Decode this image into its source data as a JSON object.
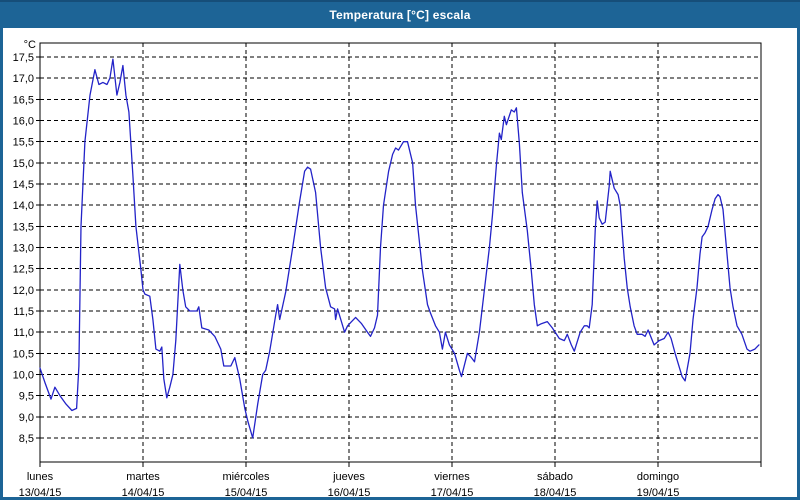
{
  "window": {
    "title": "Temperatura [°C] escala"
  },
  "colors": {
    "title_bar": "#1d6496",
    "title_bar_top_edge": "#164e79",
    "window_border": "#1d6496",
    "plot_background": "#ffffff",
    "grid": "#000000",
    "line": "#2323c8",
    "text": "#000000",
    "title_text": "#ffffff"
  },
  "chart_data": {
    "type": "line",
    "title": "Temperatura [°C] escala",
    "ylabel": "°C",
    "ylim": [
      8.5,
      17.5
    ],
    "ytick_step": 0.5,
    "ytick_labels": [
      "17,5",
      "17,0",
      "16,5",
      "16,0",
      "15,5",
      "15,0",
      "14,5",
      "14,0",
      "13,5",
      "13,0",
      "12,5",
      "12,0",
      "11,5",
      "11,0",
      "10,5",
      "10,0",
      "9,5",
      "9,0",
      "8,5"
    ],
    "grid": "dashed",
    "legend_position": "none",
    "x_days": [
      {
        "name": "lunes",
        "date": "13/04/15"
      },
      {
        "name": "martes",
        "date": "14/04/15"
      },
      {
        "name": "miércoles",
        "date": "15/04/15"
      },
      {
        "name": "jueves",
        "date": "16/04/15"
      },
      {
        "name": "viernes",
        "date": "17/04/15"
      },
      {
        "name": "sábado",
        "date": "18/04/15"
      },
      {
        "name": "domingo",
        "date": "19/04/15"
      }
    ],
    "series": [
      {
        "name": "Temperatura",
        "color": "#2323c8",
        "points": [
          [
            0.0,
            10.15
          ],
          [
            0.05,
            9.8
          ],
          [
            0.107,
            9.42
          ],
          [
            0.145,
            9.7
          ],
          [
            0.194,
            9.5
          ],
          [
            0.252,
            9.3
          ],
          [
            0.31,
            9.15
          ],
          [
            0.355,
            9.2
          ],
          [
            0.378,
            10.2
          ],
          [
            0.398,
            13.5
          ],
          [
            0.436,
            15.5
          ],
          [
            0.485,
            16.6
          ],
          [
            0.533,
            17.2
          ],
          [
            0.572,
            16.85
          ],
          [
            0.611,
            16.9
          ],
          [
            0.65,
            16.85
          ],
          [
            0.679,
            17.0
          ],
          [
            0.708,
            17.45
          ],
          [
            0.747,
            16.6
          ],
          [
            0.776,
            16.9
          ],
          [
            0.805,
            17.3
          ],
          [
            0.834,
            16.6
          ],
          [
            0.863,
            16.2
          ],
          [
            0.902,
            14.7
          ],
          [
            0.931,
            13.5
          ],
          [
            0.979,
            12.5
          ],
          [
            1.0,
            12.0
          ],
          [
            1.018,
            11.9
          ],
          [
            1.066,
            11.85
          ],
          [
            1.096,
            11.3
          ],
          [
            1.125,
            10.6
          ],
          [
            1.163,
            10.55
          ],
          [
            1.183,
            10.65
          ],
          [
            1.202,
            9.9
          ],
          [
            1.231,
            9.45
          ],
          [
            1.26,
            9.7
          ],
          [
            1.29,
            10.0
          ],
          [
            1.318,
            10.8
          ],
          [
            1.357,
            12.6
          ],
          [
            1.386,
            12.0
          ],
          [
            1.415,
            11.6
          ],
          [
            1.454,
            11.5
          ],
          [
            1.522,
            11.5
          ],
          [
            1.542,
            11.6
          ],
          [
            1.571,
            11.1
          ],
          [
            1.639,
            11.05
          ],
          [
            1.697,
            10.9
          ],
          [
            1.755,
            10.6
          ],
          [
            1.784,
            10.2
          ],
          [
            1.852,
            10.2
          ],
          [
            1.891,
            10.4
          ],
          [
            1.939,
            9.9
          ],
          [
            1.988,
            9.2
          ],
          [
            2.017,
            8.9
          ],
          [
            2.065,
            8.5
          ],
          [
            2.114,
            9.3
          ],
          [
            2.162,
            10.0
          ],
          [
            2.191,
            10.1
          ],
          [
            2.23,
            10.55
          ],
          [
            2.288,
            11.4
          ],
          [
            2.307,
            11.65
          ],
          [
            2.327,
            11.3
          ],
          [
            2.385,
            11.95
          ],
          [
            2.453,
            13.0
          ],
          [
            2.521,
            14.1
          ],
          [
            2.569,
            14.8
          ],
          [
            2.598,
            14.9
          ],
          [
            2.627,
            14.85
          ],
          [
            2.676,
            14.3
          ],
          [
            2.724,
            13.0
          ],
          [
            2.773,
            12.05
          ],
          [
            2.821,
            11.6
          ],
          [
            2.86,
            11.55
          ],
          [
            2.87,
            11.3
          ],
          [
            2.889,
            11.55
          ],
          [
            2.957,
            11.0
          ],
          [
            2.986,
            11.15
          ],
          [
            3.025,
            11.25
          ],
          [
            3.064,
            11.35
          ],
          [
            3.122,
            11.2
          ],
          [
            3.18,
            11.0
          ],
          [
            3.209,
            10.9
          ],
          [
            3.248,
            11.1
          ],
          [
            3.277,
            11.4
          ],
          [
            3.306,
            13.0
          ],
          [
            3.335,
            14.0
          ],
          [
            3.384,
            14.8
          ],
          [
            3.423,
            15.2
          ],
          [
            3.452,
            15.35
          ],
          [
            3.481,
            15.3
          ],
          [
            3.529,
            15.5
          ],
          [
            3.568,
            15.5
          ],
          [
            3.617,
            15.0
          ],
          [
            3.646,
            14.0
          ],
          [
            3.714,
            12.45
          ],
          [
            3.762,
            11.65
          ],
          [
            3.791,
            11.45
          ],
          [
            3.84,
            11.15
          ],
          [
            3.878,
            11.0
          ],
          [
            3.907,
            10.6
          ],
          [
            3.936,
            11.0
          ],
          [
            3.975,
            10.7
          ],
          [
            4.024,
            10.5
          ],
          [
            4.072,
            10.1
          ],
          [
            4.092,
            9.95
          ],
          [
            4.15,
            10.5
          ],
          [
            4.188,
            10.4
          ],
          [
            4.218,
            10.3
          ],
          [
            4.266,
            11.0
          ],
          [
            4.315,
            12.0
          ],
          [
            4.363,
            13.0
          ],
          [
            4.392,
            13.75
          ],
          [
            4.431,
            14.95
          ],
          [
            4.46,
            15.7
          ],
          [
            4.479,
            15.55
          ],
          [
            4.508,
            16.1
          ],
          [
            4.528,
            15.9
          ],
          [
            4.576,
            16.25
          ],
          [
            4.605,
            16.2
          ],
          [
            4.625,
            16.3
          ],
          [
            4.654,
            15.45
          ],
          [
            4.683,
            14.3
          ],
          [
            4.731,
            13.4
          ],
          [
            4.77,
            12.45
          ],
          [
            4.799,
            11.65
          ],
          [
            4.828,
            11.15
          ],
          [
            4.867,
            11.2
          ],
          [
            4.925,
            11.25
          ],
          [
            4.974,
            11.1
          ],
          [
            5.042,
            10.85
          ],
          [
            5.09,
            10.8
          ],
          [
            5.119,
            10.95
          ],
          [
            5.158,
            10.7
          ],
          [
            5.187,
            10.55
          ],
          [
            5.245,
            11.0
          ],
          [
            5.284,
            11.15
          ],
          [
            5.313,
            11.15
          ],
          [
            5.332,
            11.1
          ],
          [
            5.361,
            11.65
          ],
          [
            5.39,
            13.4
          ],
          [
            5.41,
            14.1
          ],
          [
            5.429,
            13.7
          ],
          [
            5.458,
            13.55
          ],
          [
            5.487,
            13.6
          ],
          [
            5.526,
            14.45
          ],
          [
            5.536,
            14.8
          ],
          [
            5.575,
            14.4
          ],
          [
            5.613,
            14.25
          ],
          [
            5.633,
            14.0
          ],
          [
            5.672,
            12.75
          ],
          [
            5.701,
            12.05
          ],
          [
            5.73,
            11.6
          ],
          [
            5.768,
            11.15
          ],
          [
            5.798,
            10.95
          ],
          [
            5.846,
            10.95
          ],
          [
            5.875,
            10.9
          ],
          [
            5.904,
            11.05
          ],
          [
            5.962,
            10.7
          ],
          [
            6.011,
            10.8
          ],
          [
            6.06,
            10.85
          ],
          [
            6.098,
            11.0
          ],
          [
            6.127,
            10.85
          ],
          [
            6.166,
            10.5
          ],
          [
            6.234,
            9.95
          ],
          [
            6.263,
            9.85
          ],
          [
            6.311,
            10.5
          ],
          [
            6.34,
            11.3
          ],
          [
            6.379,
            12.05
          ],
          [
            6.408,
            12.85
          ],
          [
            6.428,
            13.25
          ],
          [
            6.457,
            13.35
          ],
          [
            6.486,
            13.5
          ],
          [
            6.525,
            13.9
          ],
          [
            6.554,
            14.15
          ],
          [
            6.583,
            14.25
          ],
          [
            6.602,
            14.2
          ],
          [
            6.631,
            13.9
          ],
          [
            6.67,
            12.85
          ],
          [
            6.699,
            12.05
          ],
          [
            6.728,
            11.6
          ],
          [
            6.767,
            11.15
          ],
          [
            6.815,
            10.95
          ],
          [
            6.864,
            10.6
          ],
          [
            6.893,
            10.55
          ],
          [
            6.941,
            10.6
          ],
          [
            6.98,
            10.7
          ]
        ]
      }
    ]
  }
}
